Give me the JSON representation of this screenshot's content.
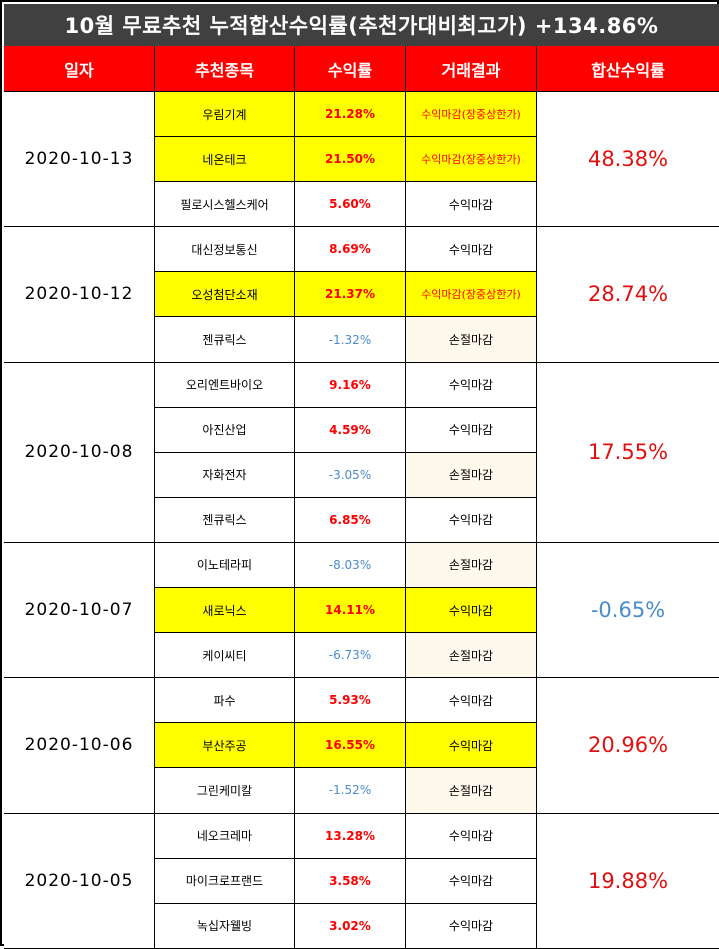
{
  "title": "10월 무료추천 누적합산수익률(추천가대비최고가) +134.86%",
  "headers": [
    "일자",
    "추천종목",
    "수익률",
    "거래결과",
    "합산수익률"
  ],
  "groups": [
    {
      "date": "2020-10-13",
      "cumulative": "48.38%",
      "cum_color": "red",
      "rows": [
        {
          "stock": "우림기계",
          "rate": "21.28%",
          "result": "수익마감(장중상한가)",
          "highlight": true,
          "rate_sign": "pos",
          "result_red": true
        },
        {
          "stock": "네온테크",
          "rate": "21.50%",
          "result": "수익마감(장중상한가)",
          "highlight": true,
          "rate_sign": "pos",
          "result_red": true
        },
        {
          "stock": "필로시스헬스케어",
          "rate": "5.60%",
          "result": "수익마감",
          "highlight": false,
          "rate_sign": "pos",
          "result_red": false
        }
      ]
    },
    {
      "date": "2020-10-12",
      "cumulative": "28.74%",
      "cum_color": "red",
      "rows": [
        {
          "stock": "대신정보통신",
          "rate": "8.69%",
          "result": "수익마감",
          "highlight": false,
          "rate_sign": "pos",
          "result_red": false
        },
        {
          "stock": "오성첨단소재",
          "rate": "21.37%",
          "result": "수익마감(장중상한가)",
          "highlight": true,
          "rate_sign": "pos",
          "result_red": true
        },
        {
          "stock": "젠큐릭스",
          "rate": "-1.32%",
          "result": "손절마감",
          "highlight": false,
          "rate_sign": "neg",
          "result_red": false
        }
      ]
    },
    {
      "date": "2020-10-08",
      "cumulative": "17.55%",
      "cum_color": "red",
      "rows": [
        {
          "stock": "오리엔트바이오",
          "rate": "9.16%",
          "result": "수익마감",
          "highlight": false,
          "rate_sign": "pos",
          "result_red": false
        },
        {
          "stock": "아진산업",
          "rate": "4.59%",
          "result": "수익마감",
          "highlight": false,
          "rate_sign": "pos",
          "result_red": false
        },
        {
          "stock": "자화전자",
          "rate": "-3.05%",
          "result": "손절마감",
          "highlight": false,
          "rate_sign": "neg",
          "result_red": false
        },
        {
          "stock": "젠큐릭스",
          "rate": "6.85%",
          "result": "수익마감",
          "highlight": false,
          "rate_sign": "pos",
          "result_red": false
        }
      ]
    },
    {
      "date": "2020-10-07",
      "cumulative": "-0.65%",
      "cum_color": "blue",
      "rows": [
        {
          "stock": "이노테라피",
          "rate": "-8.03%",
          "result": "손절마감",
          "highlight": false,
          "rate_sign": "neg",
          "result_red": false
        },
        {
          "stock": "새로닉스",
          "rate": "14.11%",
          "result": "수익마감",
          "highlight": true,
          "rate_sign": "pos",
          "result_red": false
        },
        {
          "stock": "케이씨티",
          "rate": "-6.73%",
          "result": "손절마감",
          "highlight": false,
          "rate_sign": "neg",
          "result_red": false
        }
      ]
    },
    {
      "date": "2020-10-06",
      "cumulative": "20.96%",
      "cum_color": "red",
      "rows": [
        {
          "stock": "파수",
          "rate": "5.93%",
          "result": "수익마감",
          "highlight": false,
          "rate_sign": "pos",
          "result_red": false
        },
        {
          "stock": "부산주공",
          "rate": "16.55%",
          "result": "수익마감",
          "highlight": true,
          "rate_sign": "pos",
          "result_red": false
        },
        {
          "stock": "그린케미칼",
          "rate": "-1.52%",
          "result": "손절마감",
          "highlight": false,
          "rate_sign": "neg",
          "result_red": false
        }
      ]
    },
    {
      "date": "2020-10-05",
      "cumulative": "19.88%",
      "cum_color": "red",
      "rows": [
        {
          "stock": "네오크레마",
          "rate": "13.28%",
          "result": "수익마감",
          "highlight": false,
          "rate_sign": "pos",
          "result_red": false
        },
        {
          "stock": "마이크로프랜드",
          "rate": "3.58%",
          "result": "수익마감",
          "highlight": false,
          "rate_sign": "pos",
          "result_red": false
        },
        {
          "stock": "녹십자웰빙",
          "rate": "3.02%",
          "result": "수익마감",
          "highlight": false,
          "rate_sign": "pos",
          "result_red": false
        }
      ]
    }
  ]
}
